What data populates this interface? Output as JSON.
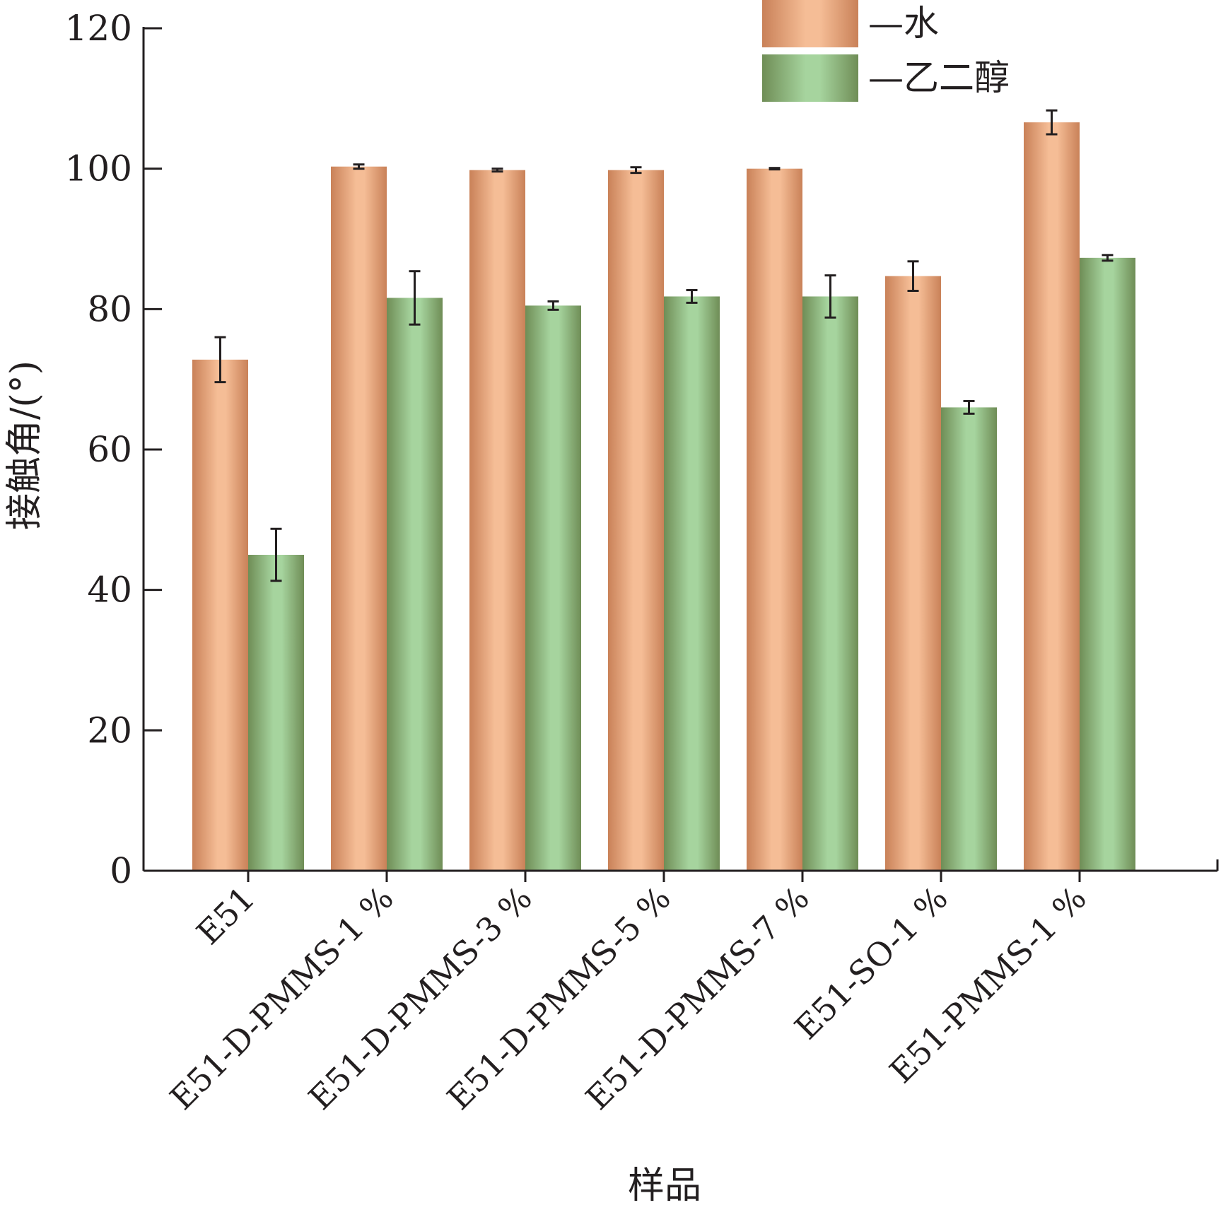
{
  "chart_data": {
    "type": "bar",
    "title": "",
    "xlabel": "样品",
    "ylabel": "接触角/(°)",
    "ylim": [
      0,
      120
    ],
    "yticks": [
      0,
      20,
      40,
      60,
      80,
      100,
      120
    ],
    "categories": [
      "E51",
      "E51-D-PMMS-1 %",
      "E51-D-PMMS-3 %",
      "E51-D-PMMS-5 %",
      "E51-D-PMMS-7 %",
      "E51-SO-1 %",
      "E51-PMMS-1 %"
    ],
    "series": [
      {
        "name": "—水",
        "color": "#f5bd96",
        "edge_color": "#c98158",
        "values": [
          72.8,
          100.3,
          99.8,
          99.8,
          100.0,
          84.7,
          106.6
        ],
        "errors": [
          3.2,
          0.3,
          0.2,
          0.4,
          0.1,
          2.1,
          1.7
        ]
      },
      {
        "name": "—乙二醇",
        "color": "#a6d49e",
        "edge_color": "#6f8d56",
        "values": [
          45.0,
          81.6,
          80.5,
          81.8,
          81.8,
          66.0,
          87.3
        ],
        "errors": [
          3.7,
          3.8,
          0.6,
          0.9,
          3.0,
          0.9,
          0.4
        ]
      }
    ],
    "legend_position": "top-right",
    "grid": false
  }
}
